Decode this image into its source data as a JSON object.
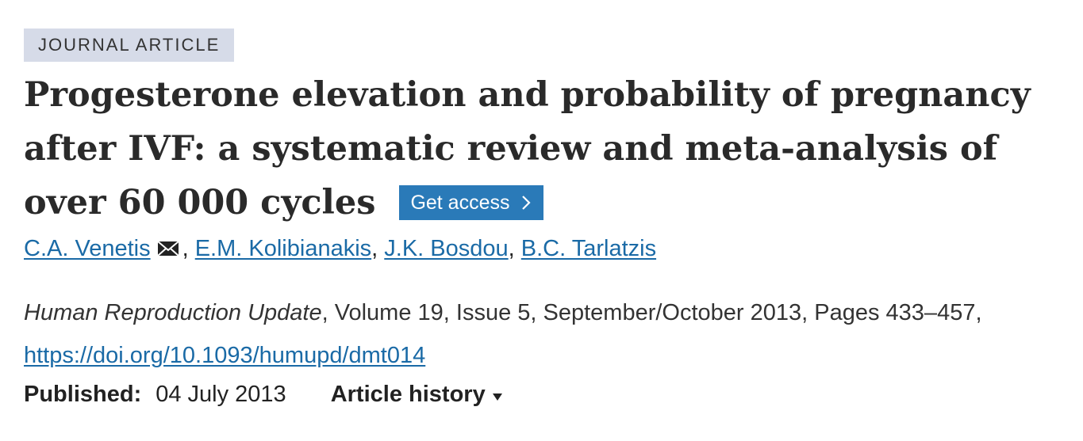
{
  "label": "JOURNAL ARTICLE",
  "title_lines": [
    "Progesterone elevation and probability of pregnancy",
    "after IVF: a systematic review and meta-analysis of",
    "over 60 000 cycles"
  ],
  "access_button": "Get access",
  "authors": [
    "C.A. Venetis",
    "E.M. Kolibianakis",
    "J.K. Bosdou",
    "B.C. Tarlatzis"
  ],
  "author_separator": ", ",
  "citation": {
    "journal": "Human Reproduction Update",
    "details": ", Volume 19, Issue 5, September/October 2013, Pages 433–457, ",
    "doi": "https://doi.org/10.1093/humupd/dmt014"
  },
  "published": {
    "label": "Published:",
    "date": "04 July 2013"
  },
  "history": "Article history"
}
